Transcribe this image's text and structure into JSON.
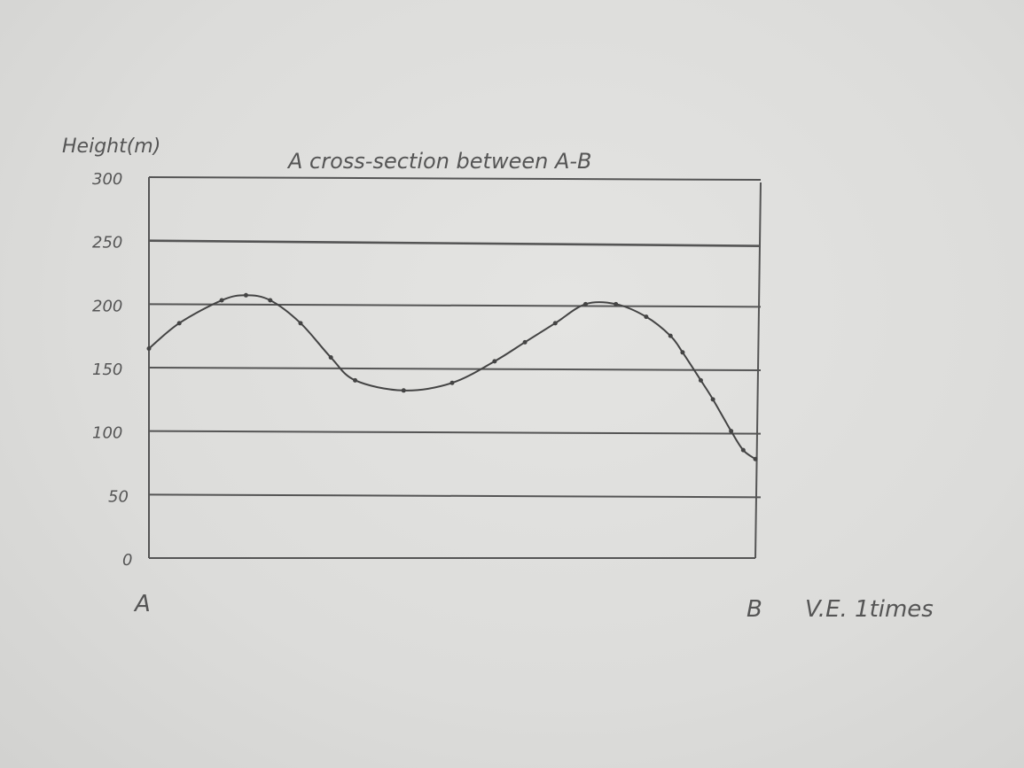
{
  "chart_data": {
    "type": "line",
    "title": "A cross-section between A-B",
    "ylabel": "Height(m)",
    "ylim": [
      0,
      300
    ],
    "yticks": [
      "0",
      "50",
      "100",
      "150",
      "200",
      "250",
      "300"
    ],
    "x_endpoints": {
      "start": "A",
      "end": "B"
    },
    "vertical_exaggeration_note": "V.E. 1times",
    "grid": true,
    "series": [
      {
        "x": [
          0,
          0.05,
          0.12,
          0.16,
          0.2,
          0.25,
          0.3,
          0.34,
          0.42,
          0.5,
          0.57,
          0.62,
          0.67,
          0.72,
          0.77,
          0.82,
          0.86,
          0.88,
          0.91,
          0.93,
          0.96,
          0.98,
          1.0
        ],
        "values": [
          165,
          185,
          203,
          207,
          203,
          185,
          158,
          140,
          132,
          138,
          155,
          170,
          185,
          200,
          200,
          190,
          175,
          162,
          140,
          125,
          100,
          85,
          78
        ]
      }
    ]
  }
}
